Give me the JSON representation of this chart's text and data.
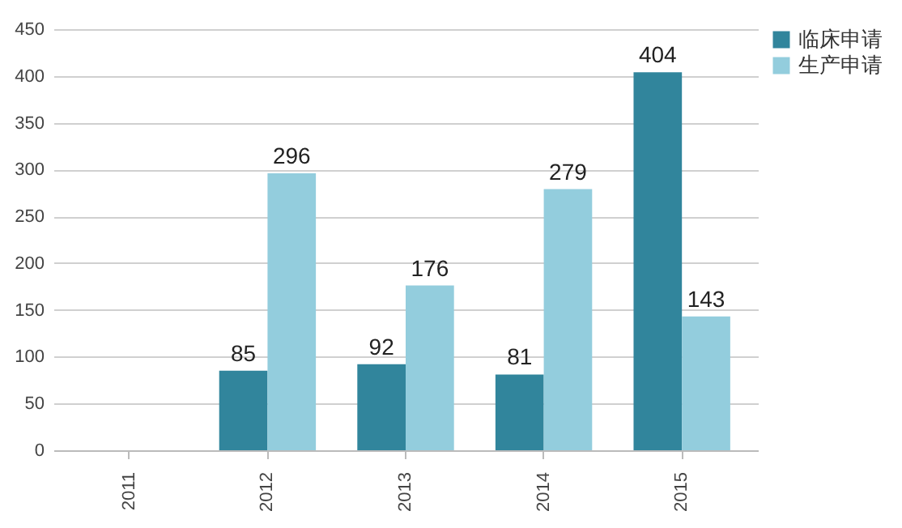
{
  "chart_data": {
    "type": "bar",
    "categories": [
      "2011",
      "2012",
      "2013",
      "2014",
      "2015"
    ],
    "series": [
      {
        "name": "临床申请",
        "color": "#31859c",
        "values": [
          null,
          85,
          92,
          81,
          404
        ]
      },
      {
        "name": "生产申请",
        "color": "#93cddd",
        "values": [
          null,
          296,
          176,
          279,
          143
        ]
      }
    ],
    "ylim": [
      0,
      450
    ],
    "yticks": [
      0,
      50,
      100,
      150,
      200,
      250,
      300,
      350,
      400,
      450
    ],
    "grid": "y",
    "legend": "right",
    "data_labels": true
  }
}
